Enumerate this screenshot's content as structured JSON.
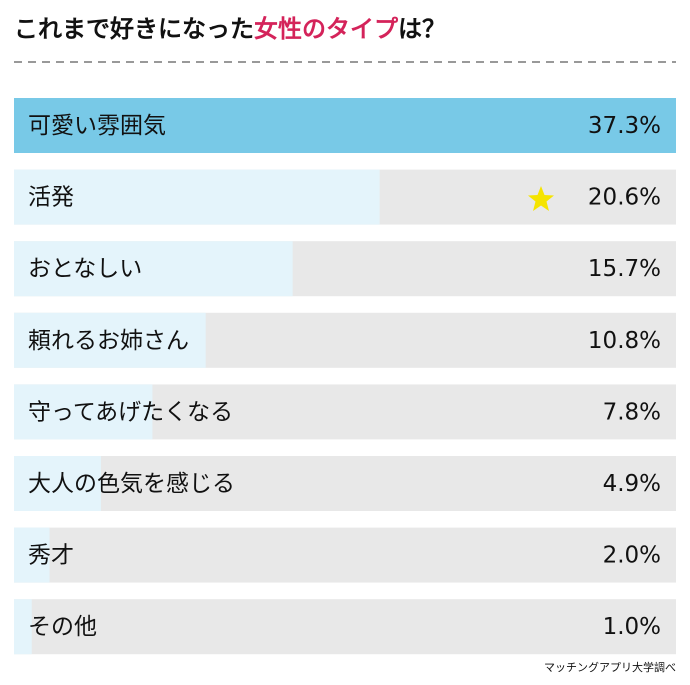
{
  "chart_data": {
    "type": "hbar",
    "title": {
      "before": "これまで好きになった",
      "highlight": "女性のタイプ",
      "after": "は？"
    },
    "title_highlight_color": "#d4235a",
    "categories": [
      "可愛い雰囲気",
      "活発",
      "おとなしい",
      "頼れるお姉さん",
      "守ってあげたくなる",
      "大人の色気を感じる",
      "秀才",
      "その他"
    ],
    "values": [
      37.3,
      20.6,
      15.7,
      10.8,
      7.8,
      4.9,
      2.0,
      1.0
    ],
    "value_labels": [
      "37.3%",
      "20.6%",
      "15.7%",
      "10.8%",
      "7.8%",
      "4.9%",
      "2.0%",
      "1.0%"
    ],
    "color": "#e4f4fb",
    "highlight_color": "#78c9e7",
    "highlight_index": 0,
    "track_color": "#e8e8e8",
    "xlim": [
      0,
      37.3
    ],
    "source": "マッチングアプリ大学調べ"
  }
}
